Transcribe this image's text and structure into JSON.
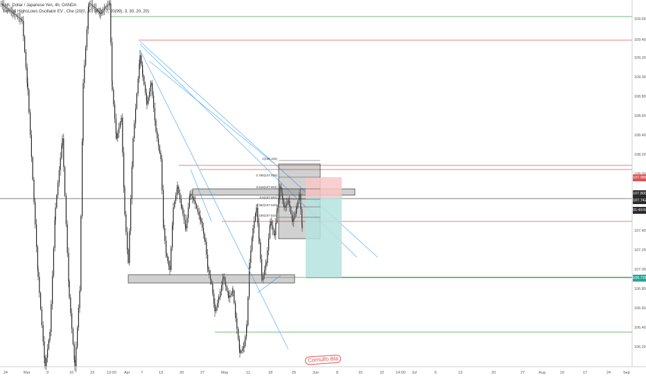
{
  "legend": {
    "line1": "U.S. Dollar / Japanese Yen, 4h, OANDA",
    "line2": "Swings HighsLows Oscillator EV , Che (20(0, 10, 20, 0, 0, 20(99), 3, 30, 20, 20)"
  },
  "price_axis": {
    "ticks": [
      "109.60",
      "109.40",
      "109.20",
      "109.00",
      "108.80",
      "108.60",
      "108.40",
      "108.20",
      "108.00",
      "107.80",
      "107.60",
      "107.40",
      "107.20",
      "107.00",
      "106.80",
      "106.60",
      "106.40",
      "106.20"
    ],
    "badges": [
      {
        "label": "107.988",
        "color": "#e05252"
      },
      {
        "label": "107.800",
        "color": "#2b2b2b"
      },
      {
        "label": "107.742",
        "color": "#2b2b2b"
      },
      {
        "label": "01:49:58",
        "color": "#2b2b2b"
      },
      {
        "label": "106.728",
        "color": "#26a69a"
      }
    ]
  },
  "time_axis": {
    "labels": [
      "24",
      "Mar",
      "9",
      "16",
      "23",
      "13:00",
      "Apr",
      "7",
      "13",
      "20",
      "27",
      "May",
      "11",
      "18",
      "25",
      "Jun",
      "8",
      "15",
      "22",
      "14:00",
      "Jul",
      "6",
      "13",
      "20",
      "27",
      "Aug",
      "10",
      "17",
      "24",
      "Sep",
      "7"
    ]
  },
  "fib_labels": [
    "1(108.102)",
    "0.786(107.929)",
    "0.618(107.804)",
    "0.5(107.697)",
    "0.382(107.620)",
    "0.236(107.516)"
  ],
  "watermark": "Cornulfo Bla",
  "chart_data": {
    "type": "candlestick",
    "symbol": "USDJPY",
    "timeframe": "4h",
    "ylim": [
      106.1,
      109.75
    ],
    "grid": false
  },
  "colors": {
    "candle": "#222222",
    "hline_red": "#e05252",
    "hline_green": "#43a047",
    "trendline_blue": "#64b5f6",
    "short_risk": "#f8c8c8",
    "short_reward": "#b6e3df"
  }
}
